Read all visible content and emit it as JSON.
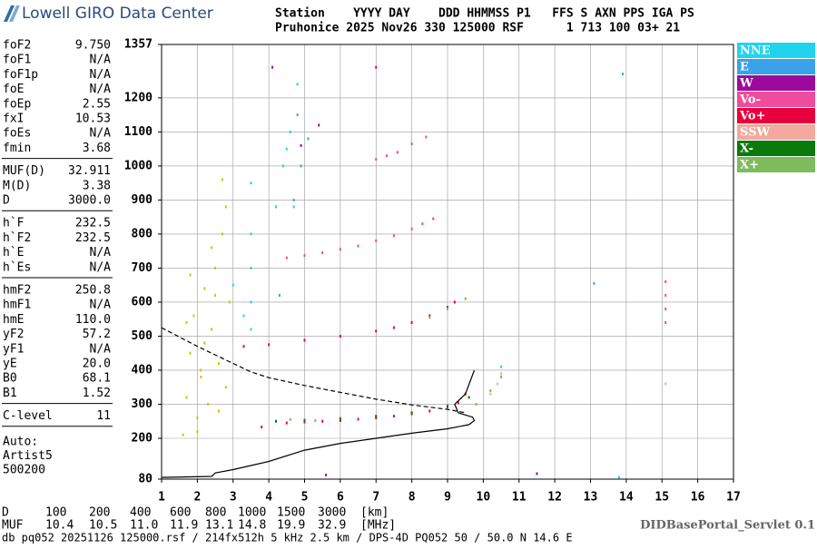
{
  "header": {
    "logo": "Lowell GIRO Data Center",
    "line1": "Station    YYYY DAY    DDD HHMMSS P1   FFS S AXN PPS IGA PS",
    "line2": "Pruhonice 2025 Nov26 330 125000 RSF      1 713 100 03+ 21"
  },
  "params": [
    [
      [
        "foF2",
        "9.750"
      ],
      [
        "foF1",
        "N/A"
      ],
      [
        "foF1p",
        "N/A"
      ],
      [
        "foE",
        "N/A"
      ],
      [
        "foEp",
        "2.55"
      ],
      [
        "fxI",
        "10.53"
      ],
      [
        "foEs",
        "N/A"
      ],
      [
        "fmin",
        "3.68"
      ]
    ],
    [
      [
        "MUF(D)",
        "32.911"
      ],
      [
        "M(D)",
        "3.38"
      ],
      [
        "D",
        "3000.0"
      ]
    ],
    [
      [
        "h`F",
        "232.5"
      ],
      [
        "h`F2",
        "232.5"
      ],
      [
        "h`E",
        "N/A"
      ],
      [
        "h`Es",
        "N/A"
      ]
    ],
    [
      [
        "hmF2",
        "250.8"
      ],
      [
        "hmF1",
        "N/A"
      ],
      [
        "hmE",
        "110.0"
      ],
      [
        "yF2",
        "57.2"
      ],
      [
        "yF1",
        "N/A"
      ],
      [
        "yE",
        "20.0"
      ],
      [
        "B0",
        "68.1"
      ],
      [
        "B1",
        "1.52"
      ]
    ],
    [
      [
        "C-level",
        "11"
      ]
    ]
  ],
  "auto": [
    "Auto:",
    "Artist5",
    "500200"
  ],
  "footer": {
    "d_row": [
      "D",
      "100",
      "200",
      "400",
      "600",
      "800",
      "1000",
      "1500",
      "3000",
      "[km]"
    ],
    "muf_row": [
      "MUF",
      "10.4",
      "10.5",
      "11.0",
      "11.9",
      "13.1",
      "14.8",
      "19.9",
      "32.9",
      "[MHz]"
    ],
    "servlet": "DIDBasePortal_Servlet 0.1",
    "file": "db pq052 20251126 125000.rsf / 214fx512h 5 kHz 2.5 km / DPS-4D PQ052 50 / 50.0 N 14.6 E"
  },
  "chart_data": {
    "type": "scatter",
    "grid": true,
    "xlim": [
      1,
      17
    ],
    "xticks": [
      1,
      2,
      3,
      4,
      5,
      6,
      7,
      8,
      9,
      10,
      11,
      12,
      13,
      14,
      15,
      16,
      17
    ],
    "ylim": [
      80,
      1357
    ],
    "yticks": [
      80,
      200,
      300,
      400,
      500,
      600,
      700,
      800,
      900,
      1000,
      1100,
      1200,
      1357
    ],
    "series": [
      {
        "name": "NNE",
        "color": "#22d3ee",
        "x": [
          3.5,
          3.5,
          3.5,
          3.5,
          3.5,
          3.3,
          4.5,
          4.6,
          4.4,
          4.7,
          10.5,
          13.8,
          3.0,
          4.2,
          4.8
        ],
        "values": [
          520,
          600,
          700,
          800,
          950,
          560,
          1050,
          1100,
          1000,
          880,
          410,
          85,
          650,
          880,
          1240
        ]
      },
      {
        "name": "E",
        "color": "#3ba1e8",
        "x": [
          4.8,
          4.9,
          4.7,
          13.1,
          4.3,
          5.1,
          13.9
        ],
        "values": [
          1150,
          1000,
          900,
          655,
          620,
          1080,
          1270
        ]
      },
      {
        "name": "W",
        "color": "#9c0a9c",
        "x": [
          5.6,
          11.5,
          4.1,
          5.4,
          4.9
        ],
        "values": [
          92,
          96,
          1290,
          1120,
          1060
        ]
      },
      {
        "name": "Vo-",
        "color": "#f04c9c",
        "x": [
          4.5,
          5.0,
          5.5,
          6.0,
          6.5,
          7.0,
          7.5,
          8.0,
          8.3,
          8.6,
          7.0,
          7.3,
          7.6,
          8.0,
          8.4,
          15.1,
          15.1,
          15.1,
          15.1
        ],
        "values": [
          730,
          737,
          745,
          755,
          765,
          780,
          795,
          815,
          830,
          845,
          1020,
          1030,
          1040,
          1065,
          1085,
          540,
          580,
          620,
          660
        ]
      },
      {
        "name": "Vo+",
        "color": "#e8003c",
        "x": [
          3.8,
          4.5,
          5.0,
          5.5,
          6.0,
          6.5,
          7.0,
          7.5,
          8.0,
          8.5,
          9.0,
          9.3,
          9.5,
          3.3,
          4.0,
          5.0,
          6.0,
          7.0,
          7.5,
          8.0,
          8.5,
          9.0,
          9.2,
          7.0
        ],
        "values": [
          233,
          245,
          248,
          250,
          252,
          256,
          260,
          265,
          272,
          280,
          292,
          305,
          330,
          470,
          475,
          488,
          500,
          515,
          525,
          540,
          560,
          585,
          600,
          1290
        ]
      },
      {
        "name": "SSW",
        "color": "#f4a8a0",
        "x": [
          10.2,
          10.4,
          10.5,
          15.1
        ],
        "values": [
          330,
          360,
          390,
          360
        ]
      },
      {
        "name": "X-",
        "color": "#0a7a0a",
        "x": [
          4.2,
          5.0,
          6.0,
          7.0,
          8.0,
          9.0,
          9.6
        ],
        "values": [
          250,
          253,
          258,
          265,
          275,
          295,
          320
        ]
      },
      {
        "name": "X+",
        "color": "#7cbc5c",
        "x": [
          8.5,
          9.0,
          9.5,
          9.8,
          10.2,
          10.5,
          4.6,
          5.3
        ],
        "values": [
          555,
          580,
          610,
          300,
          340,
          380,
          255,
          252
        ]
      },
      {
        "color": "#c8c800",
        "x": [
          1.6,
          1.7,
          1.8,
          1.9,
          2.0,
          2.1,
          2.2,
          2.3,
          2.4,
          2.5,
          2.6,
          2.7,
          2.8,
          2.9,
          1.8,
          2.0,
          2.2,
          2.4,
          2.6,
          2.8,
          1.7,
          2.1,
          2.5,
          2.7
        ],
        "values": [
          210,
          320,
          450,
          560,
          260,
          380,
          640,
          300,
          520,
          700,
          420,
          800,
          350,
          600,
          680,
          220,
          480,
          760,
          280,
          880,
          540,
          400,
          620,
          960
        ]
      }
    ],
    "profiles": [
      {
        "style": "solid",
        "x": [
          1.0,
          2.4,
          2.5,
          3.0,
          4.0,
          5.0,
          6.0,
          7.0,
          8.0,
          9.0,
          9.6,
          9.75,
          9.7,
          9.3,
          9.2,
          9.5,
          9.75
        ],
        "values": [
          85,
          88,
          98,
          108,
          132,
          165,
          185,
          200,
          215,
          228,
          240,
          252,
          262,
          275,
          300,
          330,
          400
        ]
      },
      {
        "style": "dashed",
        "x": [
          1.0,
          2.0,
          3.0,
          3.5,
          4.0,
          5.0,
          6.0,
          7.0,
          8.0,
          9.0,
          9.5
        ],
        "values": [
          525,
          470,
          420,
          395,
          378,
          355,
          335,
          315,
          298,
          285,
          275
        ]
      }
    ]
  }
}
